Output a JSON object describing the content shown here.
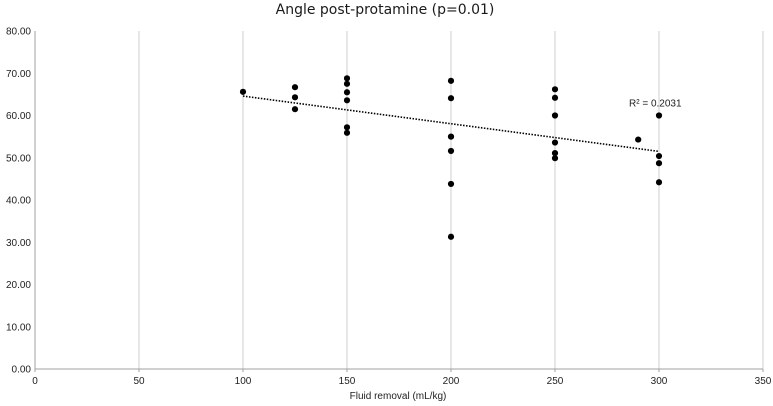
{
  "chart_data": {
    "type": "scatter",
    "title": "Angle post-protamine (p=0.01)",
    "xlabel": "Fluid removal (mL/kg)",
    "ylabel": "",
    "xlim": [
      0,
      350
    ],
    "ylim": [
      0,
      80
    ],
    "x_ticks": [
      "0",
      "50",
      "100",
      "150",
      "200",
      "250",
      "300",
      "350"
    ],
    "y_ticks": [
      "0.00",
      "10.00",
      "20.00",
      "30.00",
      "40.00",
      "50.00",
      "60.00",
      "70.00",
      "80.00"
    ],
    "grid": "vertical",
    "point_color": "#000000",
    "points": [
      [
        100,
        65.6
      ],
      [
        125,
        66.7
      ],
      [
        125,
        64.3
      ],
      [
        125,
        61.5
      ],
      [
        150,
        68.8
      ],
      [
        150,
        67.5
      ],
      [
        150,
        65.5
      ],
      [
        150,
        63.6
      ],
      [
        150,
        57.2
      ],
      [
        150,
        55.9
      ],
      [
        200,
        68.2
      ],
      [
        200,
        64.1
      ],
      [
        200,
        55.0
      ],
      [
        200,
        51.6
      ],
      [
        200,
        43.8
      ],
      [
        200,
        31.3
      ],
      [
        250,
        66.2
      ],
      [
        250,
        64.2
      ],
      [
        250,
        60.0
      ],
      [
        250,
        53.6
      ],
      [
        250,
        51.1
      ],
      [
        250,
        49.9
      ],
      [
        290,
        54.3
      ],
      [
        300,
        60.0
      ],
      [
        300,
        50.4
      ],
      [
        300,
        48.7
      ],
      [
        300,
        44.2
      ]
    ],
    "trendline": {
      "style": "dotted",
      "x": [
        100,
        300
      ],
      "y": [
        64.6,
        51.5
      ],
      "label": "R² = 0.2031"
    }
  }
}
